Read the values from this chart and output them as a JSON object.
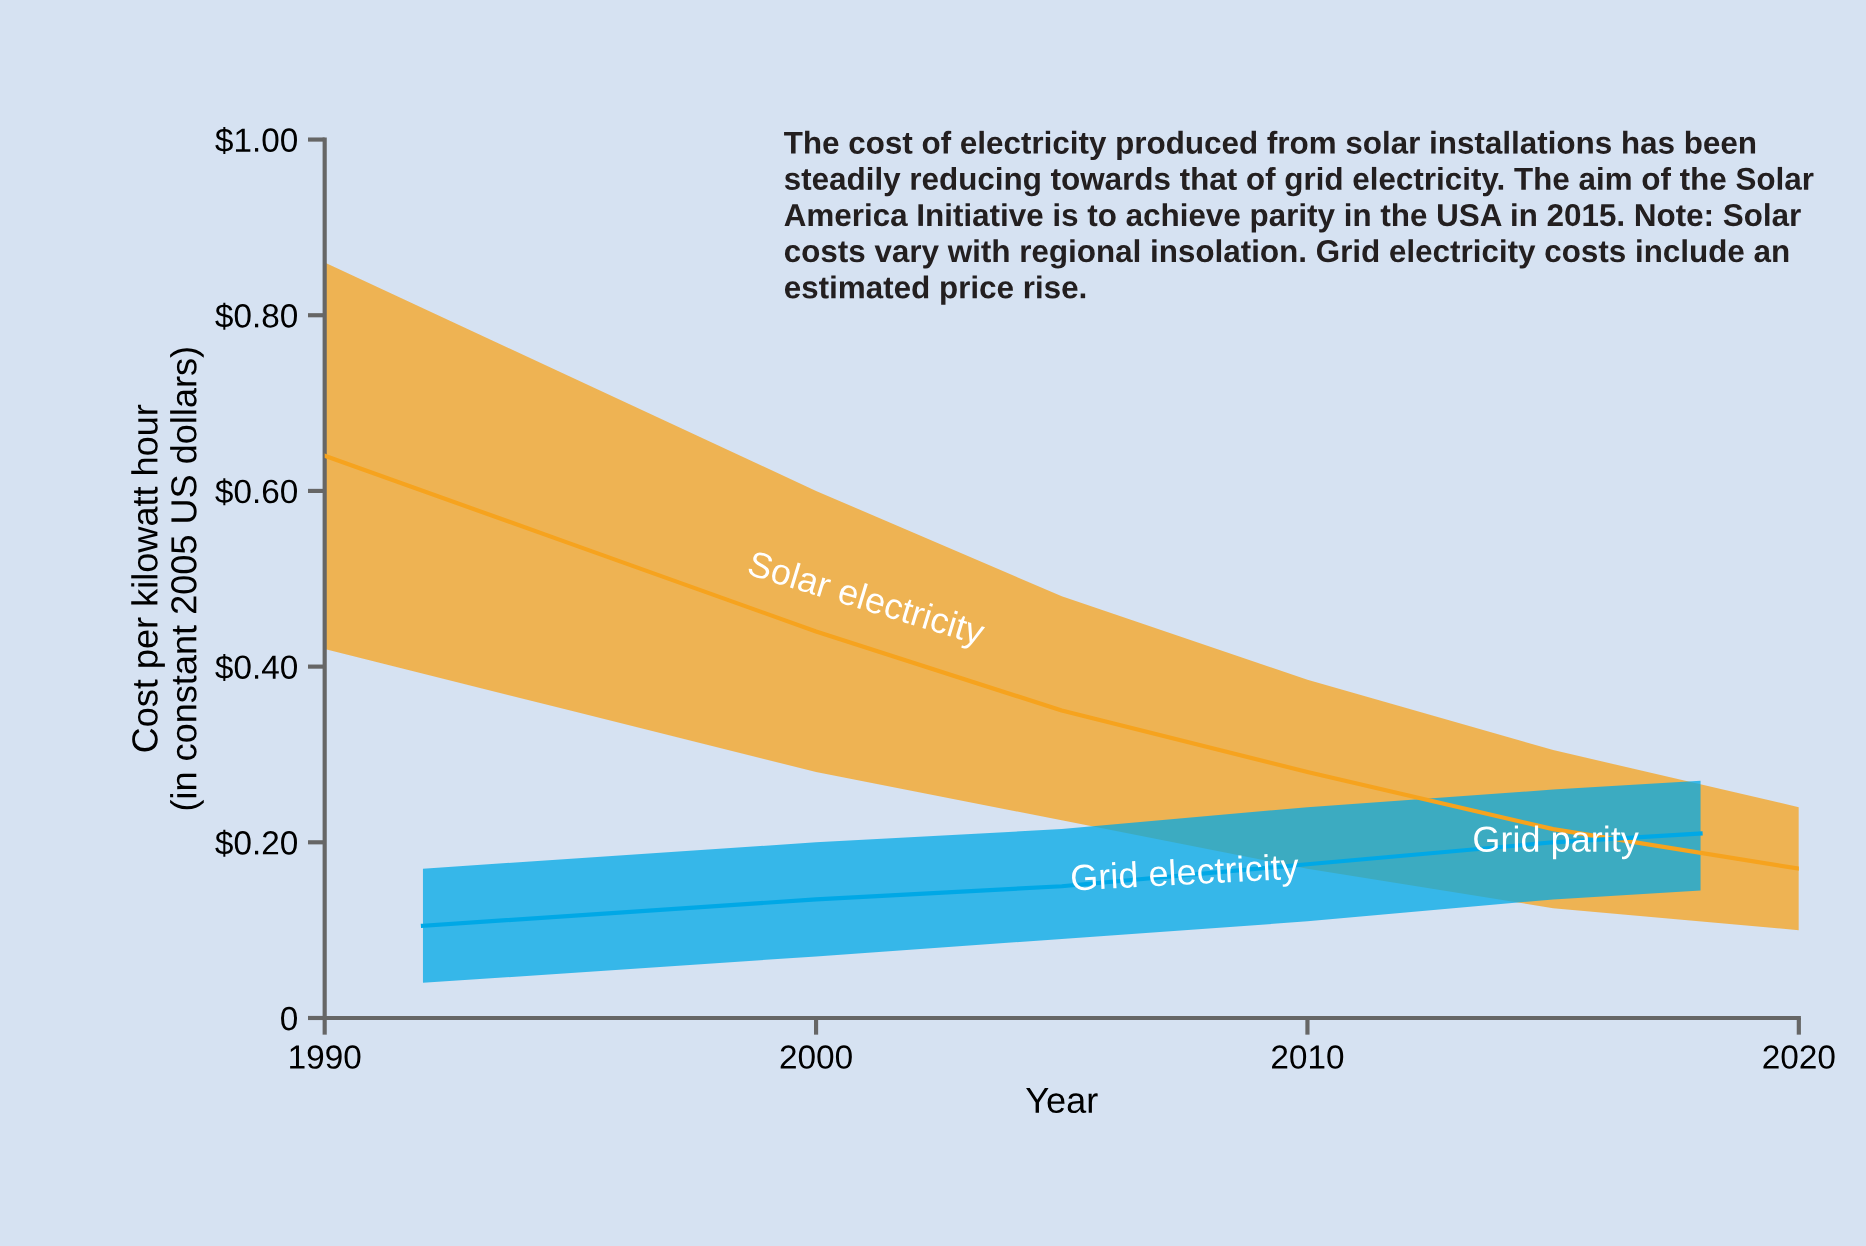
{
  "chart_data": {
    "type": "line",
    "xlabel": "Year",
    "ylabel": "Cost per kilowatt hour\n(in constant 2005 US dollars)",
    "series": [
      {
        "name": "Solar electricity",
        "color": "#f6a31e",
        "x": [
          1990,
          1995,
          2000,
          2005,
          2010,
          2015,
          2020
        ],
        "lower": [
          0.42,
          0.35,
          0.28,
          0.225,
          0.17,
          0.125,
          0.1
        ],
        "upper": [
          0.86,
          0.73,
          0.6,
          0.48,
          0.385,
          0.305,
          0.24
        ],
        "values": [
          0.64,
          0.54,
          0.44,
          0.35,
          0.28,
          0.215,
          0.17
        ]
      },
      {
        "name": "Grid electricity",
        "color": "#00a8e6",
        "x": [
          1992,
          2000,
          2005,
          2010,
          2015,
          2018
        ],
        "lower": [
          0.04,
          0.07,
          0.09,
          0.11,
          0.135,
          0.145
        ],
        "upper": [
          0.17,
          0.2,
          0.215,
          0.24,
          0.26,
          0.27
        ],
        "values": [
          0.105,
          0.135,
          0.15,
          0.175,
          0.2,
          0.21
        ]
      }
    ],
    "annotations": [
      "The cost of electricity produced from solar installations has been steadily reducing towards that of grid electricity. The aim of the Solar America Initiative is to achieve parity in the USA in 2015. Note: Solar costs vary with regional insolation. Grid electricity costs include an estimated price rise.",
      "Grid parity"
    ],
    "xlim": [
      1990,
      2020
    ],
    "xticks": [
      1990,
      2000,
      2010,
      2020
    ],
    "ylim": [
      0,
      1.0
    ],
    "yticks": [
      {
        "value": 0,
        "label": "0"
      },
      {
        "value": 0.2,
        "label": "$0.20"
      },
      {
        "value": 0.4,
        "label": "$0.40"
      },
      {
        "value": 0.6,
        "label": "$0.60"
      },
      {
        "value": 0.8,
        "label": "$0.80"
      },
      {
        "value": 1.0,
        "label": "$1.00"
      }
    ],
    "grid": false,
    "legend": false
  }
}
